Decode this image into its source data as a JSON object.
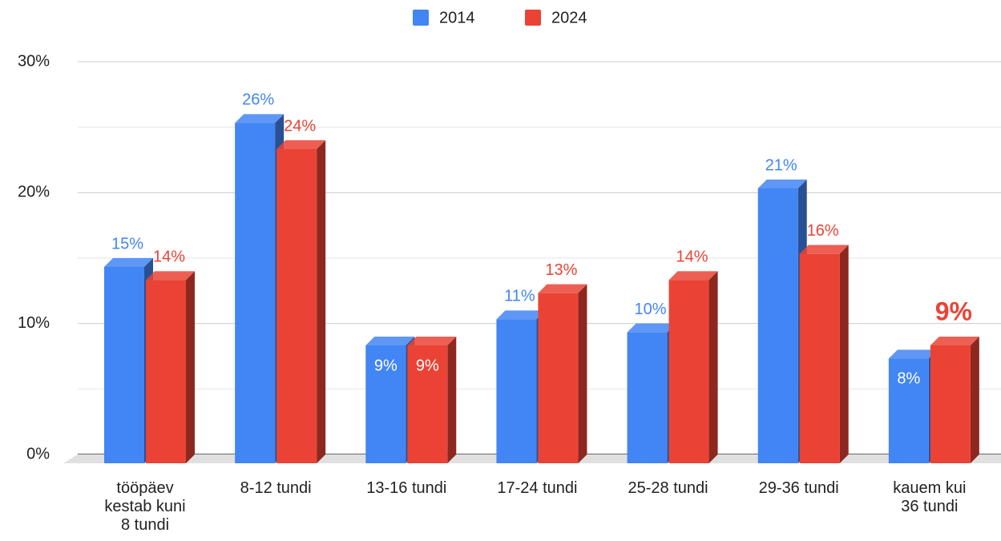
{
  "chart_data": {
    "type": "bar3d",
    "categories": [
      "tööpäev kestab kuni 8 tundi",
      "8-12 tundi",
      "13-16 tundi",
      "17-24 tundi",
      "25-28 tundi",
      "29-36 tundi",
      "kauem kui 36 tundi"
    ],
    "series": [
      {
        "name": "2014",
        "color": "#4285f4",
        "values": [
          15,
          26,
          9,
          11,
          10,
          21,
          8
        ],
        "value_labels": [
          "15%",
          "26%",
          "9%",
          "11%",
          "10%",
          "21%",
          "8%"
        ]
      },
      {
        "name": "2024",
        "color": "#ea4335",
        "values": [
          14,
          24,
          9,
          13,
          14,
          16,
          9
        ],
        "value_labels": [
          "14%",
          "24%",
          "9%",
          "13%",
          "14%",
          "16%",
          "9%"
        ]
      }
    ],
    "ylim": [
      0,
      30
    ],
    "yticks": [
      {
        "value": 0,
        "label": "0%"
      },
      {
        "value": 10,
        "label": "10%"
      },
      {
        "value": 20,
        "label": "20%"
      },
      {
        "value": 30,
        "label": "30%"
      }
    ],
    "grid": true,
    "legend": "top"
  }
}
